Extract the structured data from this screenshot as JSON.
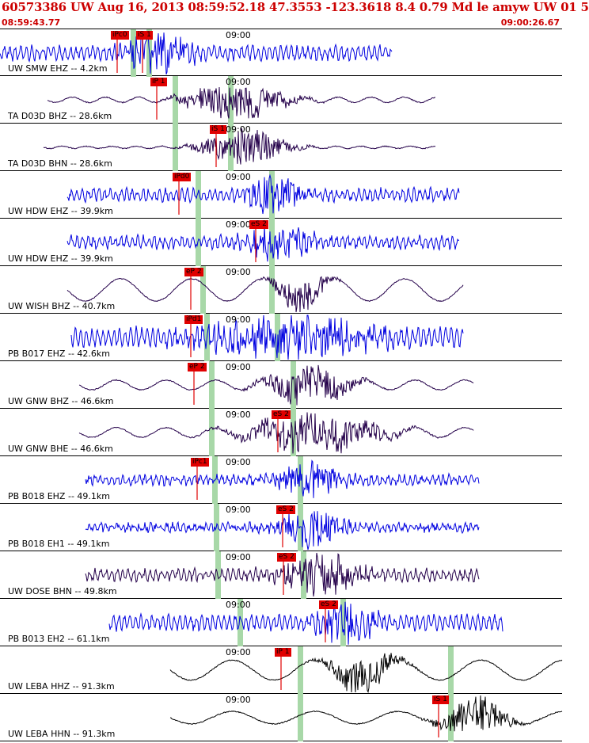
{
  "header": {
    "title": "60573386 UW Aug 16, 2013 08:59:52.18    47.3553 -123.3618  8.4 0.79 Md le amyw UW 01   5",
    "start_time": "08:59:43.77",
    "end_time": "09:00:26.67"
  },
  "time_tick_label": "09:00",
  "colors": {
    "blue_trace": "#0000e0",
    "dark_trace": "#24004a",
    "black_trace": "#000000",
    "pick": "#e00000",
    "phase_bar": "#a8d8a8"
  },
  "traces": [
    {
      "label": "UW SMW EHZ -- 4.2km",
      "picks": [
        "iPc0",
        "iS 1"
      ],
      "color": "blue"
    },
    {
      "label": "TA D03D BHZ -- 28.6km",
      "picks": [
        "iP 1"
      ],
      "color": "dark"
    },
    {
      "label": "TA D03D BHN -- 28.6km",
      "picks": [
        "iS 1"
      ],
      "color": "dark"
    },
    {
      "label": "UW HDW EHZ -- 39.9km",
      "picks": [
        "iPd0"
      ],
      "color": "blue"
    },
    {
      "label": "UW HDW EHZ -- 39.9km",
      "picks": [
        "eS 2"
      ],
      "color": "blue"
    },
    {
      "label": "UW WISH BHZ -- 40.7km",
      "picks": [
        "eP 2"
      ],
      "color": "dark"
    },
    {
      "label": "PB B017 EHZ -- 42.6km",
      "picks": [
        "iPd1"
      ],
      "color": "blue"
    },
    {
      "label": "UW GNW BHZ -- 46.6km",
      "picks": [
        "eP 2"
      ],
      "color": "dark"
    },
    {
      "label": "UW GNW BHE -- 46.6km",
      "picks": [
        "eS 2"
      ],
      "color": "dark"
    },
    {
      "label": "PB B018 EHZ -- 49.1km",
      "picks": [
        "iPc1"
      ],
      "color": "blue"
    },
    {
      "label": "PB B018 EH1 -- 49.1km",
      "picks": [
        "eS 2"
      ],
      "color": "blue"
    },
    {
      "label": "UW DOSE BHN -- 49.8km",
      "picks": [
        "eS 2"
      ],
      "color": "dark"
    },
    {
      "label": "PB B013 EH2 -- 61.1km",
      "picks": [
        "eS 2"
      ],
      "color": "blue"
    },
    {
      "label": "UW LEBA HHZ -- 91.3km",
      "picks": [
        "iP 1"
      ],
      "color": "black"
    },
    {
      "label": "UW LEBA HHN -- 91.3km",
      "picks": [
        "iS 1"
      ],
      "color": "black"
    }
  ]
}
